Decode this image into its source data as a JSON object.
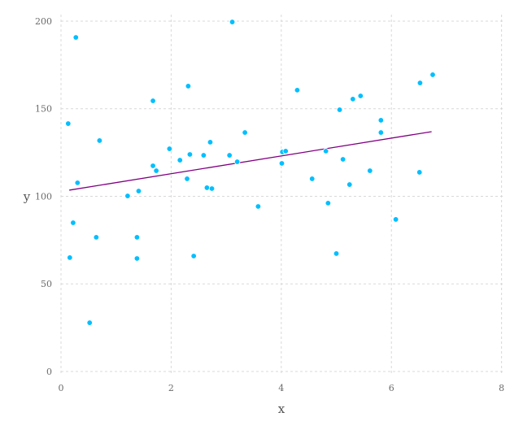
{
  "chart_data": {
    "type": "scatter",
    "x_label": "x",
    "y_label": "y",
    "xlim": [
      0,
      8.05
    ],
    "ylim": [
      -1.4,
      203.7
    ],
    "xticks": [
      0,
      2,
      4,
      6,
      8
    ],
    "yticks": [
      0,
      50,
      100,
      150,
      200
    ],
    "grid": true,
    "points": {
      "color": "#00bfff",
      "x": [
        0.27,
        3.11,
        0.13,
        1.67,
        2.31,
        0.7,
        0.3,
        0.22,
        0.16,
        0.64,
        0.52,
        1.21,
        1.41,
        1.38,
        1.38,
        1.67,
        1.73,
        1.97,
        2.16,
        2.34,
        2.29,
        2.59,
        2.71,
        2.65,
        2.74,
        2.41,
        3.06,
        3.2,
        3.34,
        3.58,
        4.02,
        4.08,
        4.01,
        4.29,
        4.56,
        4.81,
        4.85,
        5.0,
        5.06,
        5.12,
        5.24,
        5.3,
        5.44,
        5.61,
        5.81,
        5.81,
        6.08,
        6.52,
        6.51,
        6.75
      ],
      "y": [
        190.7,
        199.5,
        141.5,
        154.5,
        162.9,
        131.8,
        107.7,
        84.9,
        65,
        76.6,
        27.8,
        100.2,
        103,
        76.6,
        64.5,
        117.4,
        114.6,
        127.1,
        120.6,
        123.9,
        110,
        123.4,
        130.9,
        104.9,
        104.4,
        65.9,
        123.4,
        119.7,
        136.4,
        94.2,
        125.3,
        125.8,
        118.8,
        160.6,
        110,
        125.8,
        96.1,
        67.3,
        149.4,
        121.1,
        106.7,
        155.5,
        157.3,
        114.6,
        143.4,
        136.4,
        86.8,
        164.7,
        113.7,
        169.4
      ]
    },
    "fit": {
      "color": "#800080",
      "x": [
        0.15,
        6.73
      ],
      "y": [
        103.5,
        136.9
      ]
    }
  }
}
